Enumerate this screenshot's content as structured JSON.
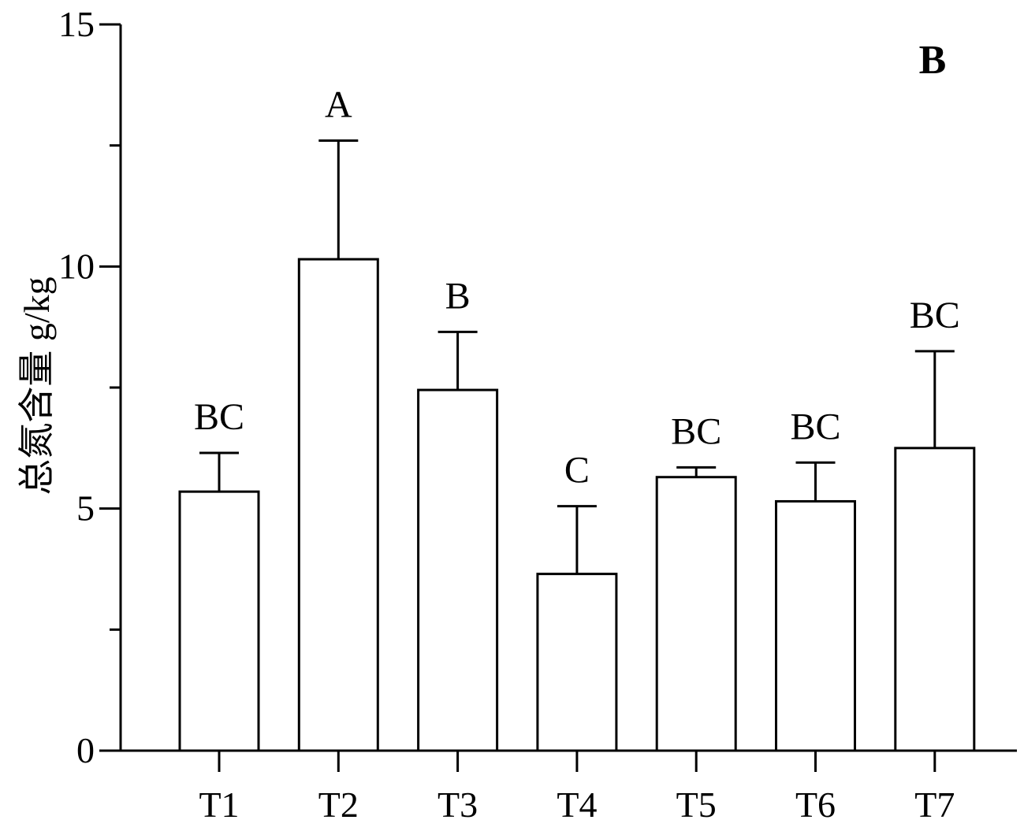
{
  "chart_data": {
    "type": "bar",
    "panel_label": "B",
    "ylabel": "总氮含量 g/kg",
    "xlabel": "",
    "ylim": [
      0,
      15
    ],
    "yticks": [
      0,
      5,
      10,
      15
    ],
    "yticks_minor": [
      2.5,
      7.5,
      12.5
    ],
    "categories": [
      "T1",
      "T2",
      "T3",
      "T4",
      "T5",
      "T6",
      "T7"
    ],
    "values": [
      5.35,
      10.15,
      7.45,
      3.65,
      5.65,
      5.15,
      6.25
    ],
    "errors": [
      0.8,
      2.45,
      1.2,
      1.4,
      0.2,
      0.8,
      2.0
    ],
    "significance_letters": [
      "BC",
      "A",
      "B",
      "C",
      "BC",
      "BC",
      "BC"
    ],
    "grid": false,
    "legend": null
  }
}
